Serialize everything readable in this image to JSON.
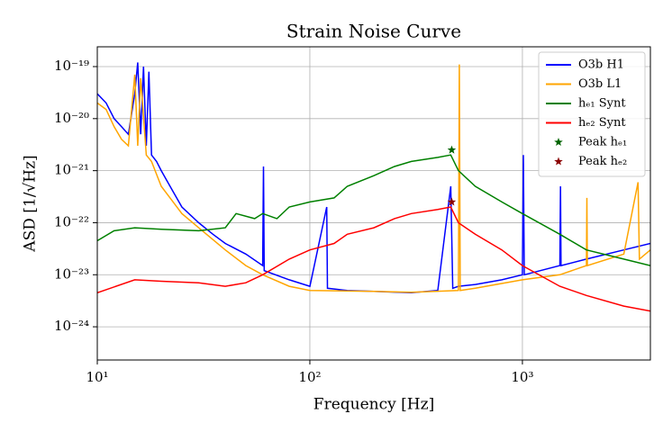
{
  "chart_data": {
    "type": "line",
    "title": "Strain Noise Curve",
    "xlabel": "Frequency [Hz]",
    "ylabel": "ASD [1/√Hz]",
    "xscale": "log",
    "yscale": "log",
    "grid": true,
    "legend_loc": "upper right",
    "xlim": [
      10,
      4000
    ],
    "ylim": [
      2.3e-25,
      2.4e-19
    ],
    "xticks": [
      {
        "value": 10,
        "label": "10¹"
      },
      {
        "value": 100,
        "label": "10²"
      },
      {
        "value": 1000,
        "label": "10³"
      }
    ],
    "yticks": [
      {
        "value": 1e-24,
        "label": "10⁻²⁴"
      },
      {
        "value": 1e-23,
        "label": "10⁻²³"
      },
      {
        "value": 1e-22,
        "label": "10⁻²²"
      },
      {
        "value": 1e-21,
        "label": "10⁻²¹"
      },
      {
        "value": 1e-20,
        "label": "10⁻²⁰"
      },
      {
        "value": 1e-19,
        "label": "10⁻¹⁹"
      }
    ],
    "series": [
      {
        "name": "O3b H1",
        "color": "#0000ff",
        "marker": "line",
        "x": [
          10,
          11,
          12,
          13,
          14,
          15,
          15.5,
          16,
          16.5,
          17,
          17.5,
          18,
          19,
          20,
          22,
          25,
          30,
          35,
          40,
          50,
          60,
          60.5,
          61,
          80,
          100,
          120,
          121,
          150,
          200,
          300,
          400,
          460,
          470,
          500,
          600,
          800,
          1000,
          1010,
          1020,
          1500,
          1510,
          1520,
          2000,
          3000,
          4000
        ],
        "values": [
          3e-20,
          2e-20,
          1e-20,
          7e-21,
          5e-21,
          3e-20,
          1.2e-19,
          5e-21,
          1e-19,
          3e-21,
          8e-20,
          2e-21,
          1.5e-21,
          1e-21,
          5e-22,
          2e-22,
          1e-22,
          6e-23,
          4e-23,
          2.5e-23,
          1.5e-23,
          1.2e-21,
          1.2e-23,
          8e-24,
          6e-24,
          2e-22,
          5.5e-24,
          5e-24,
          4.8e-24,
          4.5e-24,
          5e-24,
          5e-22,
          5.5e-24,
          6e-24,
          6.5e-24,
          8e-24,
          1e-23,
          2e-21,
          1e-23,
          1.5e-23,
          5e-22,
          1.5e-23,
          2e-23,
          3e-23,
          4e-23
        ]
      },
      {
        "name": "O3b L1",
        "color": "#ffa500",
        "marker": "line",
        "x": [
          10,
          11,
          12,
          13,
          14,
          15,
          15.5,
          16,
          17,
          18,
          20,
          22,
          25,
          30,
          40,
          50,
          60,
          80,
          100,
          200,
          300,
          500,
          505,
          510,
          600,
          1000,
          1500,
          2000,
          2010,
          2020,
          3000,
          3500,
          3550,
          4000
        ],
        "values": [
          2e-20,
          1.5e-20,
          7e-21,
          4e-21,
          3e-21,
          7e-20,
          3e-21,
          6e-20,
          2e-21,
          1.5e-21,
          5e-22,
          3e-22,
          1.5e-22,
          8e-23,
          3e-23,
          1.5e-23,
          1e-23,
          6e-24,
          5e-24,
          4.8e-24,
          4.6e-24,
          5e-24,
          1.1e-19,
          5e-24,
          5.5e-24,
          8e-24,
          1e-23,
          1.5e-23,
          3e-22,
          1.5e-23,
          2.5e-23,
          6e-22,
          2e-23,
          3e-23
        ]
      },
      {
        "name": "hₑ₁ Synt",
        "color": "#008000",
        "marker": "line",
        "x": [
          10,
          12,
          15,
          20,
          30,
          40,
          45,
          55,
          60,
          70,
          80,
          100,
          130,
          150,
          200,
          250,
          300,
          400,
          460,
          500,
          600,
          800,
          1000,
          1500,
          2000,
          3000,
          4000
        ],
        "values": [
          4.5e-23,
          7e-23,
          8e-23,
          7.5e-23,
          7e-23,
          8e-23,
          1.5e-22,
          1.2e-22,
          1.5e-22,
          1.2e-22,
          2e-22,
          2.5e-22,
          3e-22,
          5e-22,
          8e-22,
          1.2e-21,
          1.5e-21,
          1.8e-21,
          2e-21,
          1e-21,
          5e-22,
          2.5e-22,
          1.5e-22,
          6e-23,
          3e-23,
          2e-23,
          1.5e-23
        ]
      },
      {
        "name": "hₑ₂ Synt",
        "color": "#ff0000",
        "marker": "line",
        "x": [
          10,
          15,
          20,
          30,
          40,
          50,
          60,
          80,
          100,
          130,
          150,
          200,
          250,
          300,
          400,
          460,
          500,
          600,
          800,
          1000,
          1500,
          2000,
          3000,
          4000
        ],
        "values": [
          4.5e-24,
          8e-24,
          7.5e-24,
          7e-24,
          6e-24,
          7e-24,
          1e-23,
          2e-23,
          3e-23,
          4e-23,
          6e-23,
          8e-23,
          1.2e-22,
          1.5e-22,
          1.8e-22,
          2e-22,
          1e-22,
          6e-23,
          3e-23,
          1.5e-23,
          6e-24,
          4e-24,
          2.5e-24,
          2e-24
        ]
      },
      {
        "name": "Peak hₑ₁",
        "color": "#006400",
        "marker": "star",
        "x": [
          465
        ],
        "values": [
          2.5e-21
        ]
      },
      {
        "name": "Peak hₑ₂",
        "color": "#8b0000",
        "marker": "star",
        "x": [
          465
        ],
        "values": [
          2.5e-22
        ]
      }
    ]
  }
}
